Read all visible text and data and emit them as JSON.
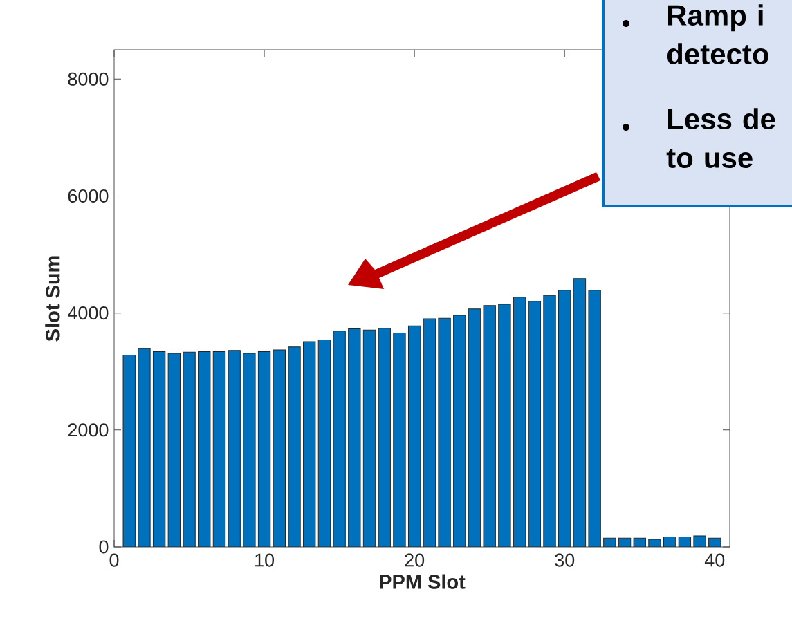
{
  "chart_data": {
    "type": "bar",
    "xlabel": "PPM Slot",
    "ylabel": "Slot Sum",
    "x": [
      1,
      2,
      3,
      4,
      5,
      6,
      7,
      8,
      9,
      10,
      11,
      12,
      13,
      14,
      15,
      16,
      17,
      18,
      19,
      20,
      21,
      22,
      23,
      24,
      25,
      26,
      27,
      28,
      29,
      30,
      31,
      32,
      33,
      34,
      35,
      36,
      37,
      38,
      39,
      40
    ],
    "values": [
      3280,
      3390,
      3340,
      3310,
      3330,
      3340,
      3340,
      3360,
      3310,
      3340,
      3370,
      3420,
      3510,
      3540,
      3690,
      3730,
      3710,
      3740,
      3660,
      3780,
      3900,
      3910,
      3960,
      4070,
      4130,
      4150,
      4270,
      4200,
      4300,
      4390,
      4590,
      4390,
      150,
      150,
      150,
      130,
      170,
      170,
      190,
      150
    ],
    "color": "#0072bd",
    "xlim": [
      0,
      41
    ],
    "ylim": [
      0,
      8500
    ],
    "xticks": [
      0,
      10,
      20,
      30,
      40
    ],
    "yticks": [
      0,
      2000,
      4000,
      6000,
      8000
    ],
    "grid": false,
    "annotations": [
      "Ramp i detecto",
      "Less de to use"
    ]
  }
}
